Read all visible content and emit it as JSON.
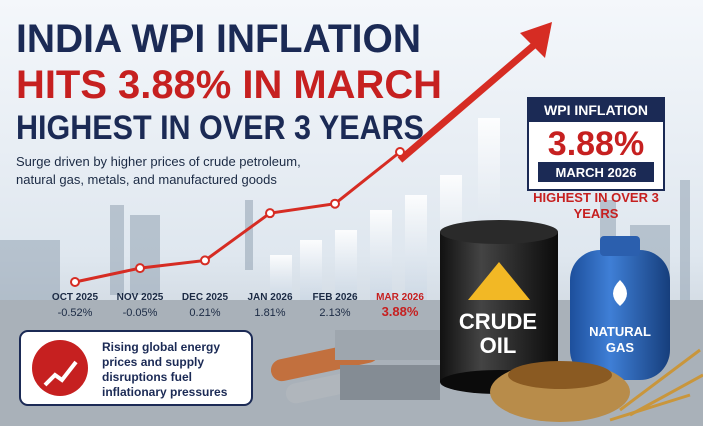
{
  "header": {
    "line1": "INDIA WPI INFLATION",
    "line2": "HITS 3.88% IN MARCH",
    "line3": "HIGHEST IN OVER 3 YEARS",
    "subtitle": "Surge driven by higher prices of crude petroleum, natural gas, metals, and manufactured goods"
  },
  "chart_data": {
    "type": "line",
    "categories": [
      "OCT 2025",
      "NOV 2025",
      "DEC 2025",
      "JAN 2026",
      "FEB 2026",
      "MAR 2026"
    ],
    "values": [
      -0.52,
      -0.05,
      0.21,
      1.81,
      2.13,
      3.88
    ],
    "value_labels": [
      "-0.52%",
      "-0.05%",
      "0.21%",
      "1.81%",
      "2.13%",
      "3.88%"
    ],
    "color": "#d62c23"
  },
  "badge": {
    "title": "WPI INFLATION",
    "value": "3.88%",
    "period": "MARCH 2026",
    "note": "HIGHEST IN OVER 3 YEARS"
  },
  "callout": {
    "text": "Rising global energy prices and supply disruptions fuel inflationary pressures"
  },
  "barrel_label": "CRUDE OIL",
  "cylinder_label": "NATURAL GAS"
}
